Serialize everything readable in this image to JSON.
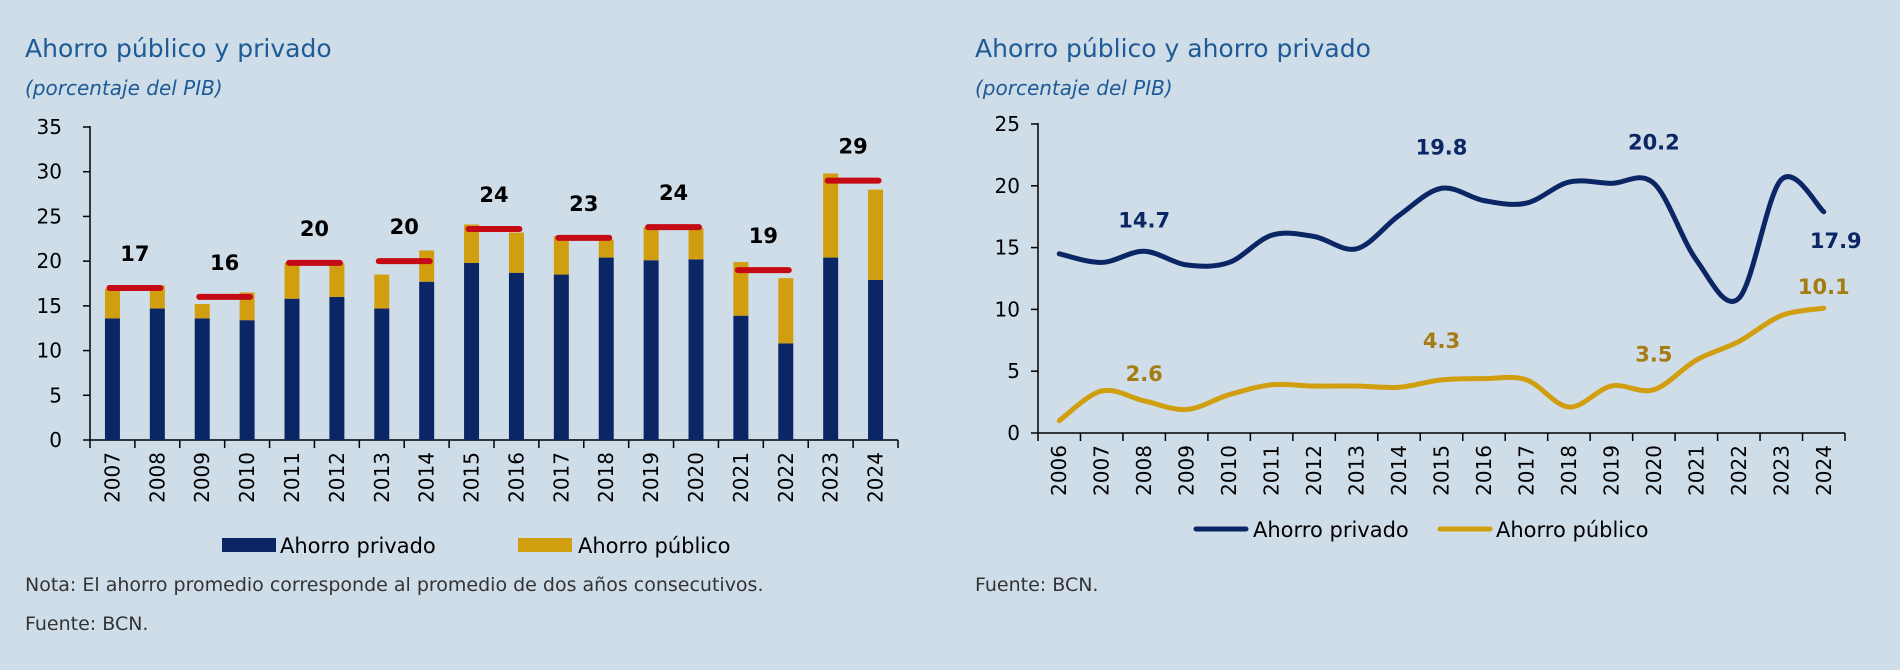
{
  "colors": {
    "background": "#cfdde9",
    "private": "#0b2664",
    "public": "#d19e10",
    "average": "#c40a15",
    "title": "#1d5a96",
    "public_label": "#a57c12"
  },
  "left": {
    "title": "Ahorro público y privado",
    "subtitle": "(porcentaje del PIB)",
    "note": "Nota: El ahorro promedio corresponde al promedio de dos años consecutivos.",
    "source": "Fuente: BCN."
  },
  "right": {
    "title": "Ahorro público y ahorro privado",
    "subtitle": "(porcentaje del PIB)",
    "source": "Fuente: BCN."
  },
  "chart_data": [
    {
      "type": "bar",
      "stacked": true,
      "title": "Ahorro público y privado",
      "subtitle": "(porcentaje del PIB)",
      "categories": [
        "2007",
        "2008",
        "2009",
        "2010",
        "2011",
        "2012",
        "2013",
        "2014",
        "2015",
        "2016",
        "2017",
        "2018",
        "2019",
        "2020",
        "2021",
        "2022",
        "2023",
        "2024"
      ],
      "series": [
        {
          "name": "Ahorro privado",
          "values": [
            13.6,
            14.7,
            13.6,
            13.4,
            15.8,
            16.0,
            14.7,
            17.7,
            19.8,
            18.7,
            18.5,
            20.4,
            20.1,
            20.2,
            13.9,
            10.8,
            20.4,
            17.9
          ]
        },
        {
          "name": "Ahorro público",
          "values": [
            3.3,
            2.6,
            1.6,
            3.1,
            4.0,
            3.8,
            3.8,
            3.5,
            4.3,
            4.5,
            4.3,
            2.0,
            3.7,
            3.5,
            6.0,
            7.3,
            9.4,
            10.1
          ]
        }
      ],
      "averages": [
        {
          "pair": [
            "2007",
            "2008"
          ],
          "value": 17,
          "label": "17"
        },
        {
          "pair": [
            "2009",
            "2010"
          ],
          "value": 16,
          "label": "16"
        },
        {
          "pair": [
            "2011",
            "2012"
          ],
          "value": 19.8,
          "label": "20"
        },
        {
          "pair": [
            "2013",
            "2014"
          ],
          "value": 20,
          "label": "20"
        },
        {
          "pair": [
            "2015",
            "2016"
          ],
          "value": 23.6,
          "label": "24"
        },
        {
          "pair": [
            "2017",
            "2018"
          ],
          "value": 22.6,
          "label": "23"
        },
        {
          "pair": [
            "2019",
            "2020"
          ],
          "value": 23.8,
          "label": "24"
        },
        {
          "pair": [
            "2021",
            "2022"
          ],
          "value": 19,
          "label": "19"
        },
        {
          "pair": [
            "2023",
            "2024"
          ],
          "value": 29,
          "label": "29"
        }
      ],
      "ylim": [
        0,
        35
      ],
      "yticks": [
        "0",
        "5",
        "10",
        "15",
        "20",
        "25",
        "30",
        "35"
      ],
      "legend": [
        "Ahorro privado",
        "Ahorro público"
      ],
      "legend_position": "bottom"
    },
    {
      "type": "line",
      "title": "Ahorro público y ahorro privado",
      "subtitle": "(porcentaje del PIB)",
      "x": [
        "2006",
        "2007",
        "2008",
        "2009",
        "2010",
        "2011",
        "2012",
        "2013",
        "2014",
        "2015",
        "2016",
        "2017",
        "2018",
        "2019",
        "2020",
        "2021",
        "2022",
        "2023",
        "2024"
      ],
      "series": [
        {
          "name": "Ahorro privado",
          "values": [
            14.5,
            13.8,
            14.7,
            13.6,
            13.8,
            16.0,
            15.9,
            14.9,
            17.6,
            19.8,
            18.8,
            18.6,
            20.3,
            20.2,
            20.2,
            14.0,
            10.9,
            20.5,
            17.9
          ]
        },
        {
          "name": "Ahorro público",
          "values": [
            1.0,
            3.4,
            2.6,
            1.9,
            3.1,
            3.9,
            3.8,
            3.8,
            3.7,
            4.3,
            4.4,
            4.3,
            2.1,
            3.8,
            3.5,
            5.9,
            7.4,
            9.5,
            10.1
          ]
        }
      ],
      "annotations": [
        {
          "series": "Ahorro privado",
          "x": "2008",
          "label": "14.7"
        },
        {
          "series": "Ahorro privado",
          "x": "2015",
          "label": "19.8"
        },
        {
          "series": "Ahorro privado",
          "x": "2020",
          "label": "20.2"
        },
        {
          "series": "Ahorro privado",
          "x": "2024",
          "label": "17.9"
        },
        {
          "series": "Ahorro público",
          "x": "2008",
          "label": "2.6"
        },
        {
          "series": "Ahorro público",
          "x": "2015",
          "label": "4.3"
        },
        {
          "series": "Ahorro público",
          "x": "2020",
          "label": "3.5"
        },
        {
          "series": "Ahorro público",
          "x": "2024",
          "label": "10.1"
        }
      ],
      "ylim": [
        0,
        25
      ],
      "yticks": [
        "0",
        "5",
        "10",
        "15",
        "20",
        "25"
      ],
      "legend": [
        "Ahorro privado",
        "Ahorro público"
      ],
      "legend_position": "bottom"
    }
  ]
}
